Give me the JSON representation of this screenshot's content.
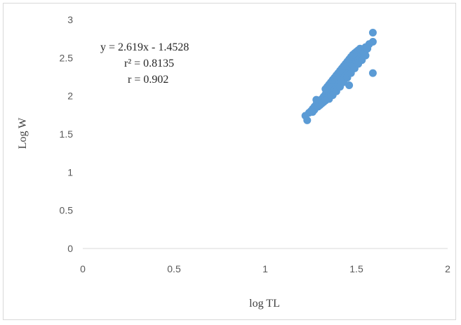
{
  "chart_data": {
    "type": "scatter",
    "xlabel": "log TL",
    "ylabel": "Log W",
    "xlim": [
      0,
      2
    ],
    "ylim": [
      0,
      3
    ],
    "x_ticks": [
      "0",
      "0.5",
      "1",
      "1.5",
      "2"
    ],
    "y_ticks": [
      "0",
      "0.5",
      "1",
      "1.5",
      "2",
      "2.5",
      "3"
    ],
    "grid": false,
    "legend": "none",
    "marker_color": "#5b9bd5",
    "annotations": {
      "equation": "y = 2.619x - 1.4528",
      "r2_label": "r² = 0.8135",
      "r_label": "r = 0.902"
    },
    "points": [
      [
        1.23,
        1.68
      ],
      [
        1.22,
        1.74
      ],
      [
        1.25,
        1.8
      ],
      [
        1.26,
        1.83
      ],
      [
        1.27,
        1.86
      ],
      [
        1.28,
        1.89
      ],
      [
        1.29,
        1.91
      ],
      [
        1.3,
        1.93
      ],
      [
        1.31,
        1.96
      ],
      [
        1.32,
        1.99
      ],
      [
        1.33,
        2.02
      ],
      [
        1.34,
        2.05
      ],
      [
        1.35,
        2.08
      ],
      [
        1.36,
        2.11
      ],
      [
        1.37,
        2.14
      ],
      [
        1.38,
        2.17
      ],
      [
        1.39,
        2.2
      ],
      [
        1.4,
        2.23
      ],
      [
        1.41,
        2.26
      ],
      [
        1.42,
        2.29
      ],
      [
        1.43,
        2.32
      ],
      [
        1.44,
        2.35
      ],
      [
        1.45,
        2.38
      ],
      [
        1.46,
        2.41
      ],
      [
        1.47,
        2.44
      ],
      [
        1.48,
        2.47
      ],
      [
        1.49,
        2.5
      ],
      [
        1.5,
        2.52
      ],
      [
        1.51,
        2.55
      ],
      [
        1.52,
        2.58
      ],
      [
        1.53,
        2.61
      ],
      [
        1.55,
        2.64
      ],
      [
        1.57,
        2.68
      ],
      [
        1.59,
        2.71
      ],
      [
        1.59,
        2.83
      ],
      [
        1.59,
        2.3
      ],
      [
        1.46,
        2.14
      ],
      [
        1.3,
        1.88
      ],
      [
        1.28,
        1.95
      ],
      [
        1.32,
        1.92
      ],
      [
        1.34,
        1.98
      ],
      [
        1.35,
        2.02
      ],
      [
        1.36,
        2.04
      ],
      [
        1.37,
        2.07
      ],
      [
        1.38,
        2.1
      ],
      [
        1.39,
        2.13
      ],
      [
        1.4,
        2.16
      ],
      [
        1.41,
        2.19
      ],
      [
        1.42,
        2.22
      ],
      [
        1.43,
        2.25
      ],
      [
        1.44,
        2.28
      ],
      [
        1.45,
        2.31
      ],
      [
        1.46,
        2.34
      ],
      [
        1.47,
        2.37
      ],
      [
        1.48,
        2.4
      ],
      [
        1.49,
        2.43
      ],
      [
        1.5,
        2.45
      ],
      [
        1.51,
        2.48
      ],
      [
        1.52,
        2.5
      ],
      [
        1.53,
        2.53
      ],
      [
        1.33,
        2.09
      ],
      [
        1.34,
        2.12
      ],
      [
        1.35,
        2.15
      ],
      [
        1.36,
        2.18
      ],
      [
        1.37,
        2.21
      ],
      [
        1.38,
        2.24
      ],
      [
        1.39,
        2.27
      ],
      [
        1.4,
        2.3
      ],
      [
        1.41,
        2.33
      ],
      [
        1.42,
        2.36
      ],
      [
        1.43,
        2.39
      ],
      [
        1.44,
        2.42
      ],
      [
        1.45,
        2.45
      ],
      [
        1.46,
        2.48
      ],
      [
        1.47,
        2.51
      ],
      [
        1.48,
        2.54
      ],
      [
        1.49,
        2.56
      ],
      [
        1.5,
        2.58
      ],
      [
        1.51,
        2.6
      ],
      [
        1.52,
        2.62
      ],
      [
        1.54,
        2.57
      ],
      [
        1.55,
        2.6
      ],
      [
        1.56,
        2.62
      ],
      [
        1.29,
        1.86
      ],
      [
        1.31,
        1.9
      ],
      [
        1.27,
        1.82
      ],
      [
        1.24,
        1.78
      ],
      [
        1.26,
        1.79
      ],
      [
        1.37,
        2.01
      ],
      [
        1.39,
        2.06
      ],
      [
        1.41,
        2.12
      ],
      [
        1.43,
        2.18
      ],
      [
        1.45,
        2.24
      ],
      [
        1.47,
        2.3
      ],
      [
        1.49,
        2.36
      ],
      [
        1.51,
        2.42
      ],
      [
        1.53,
        2.47
      ],
      [
        1.55,
        2.53
      ],
      [
        1.35,
        1.96
      ],
      [
        1.33,
        1.94
      ]
    ]
  }
}
